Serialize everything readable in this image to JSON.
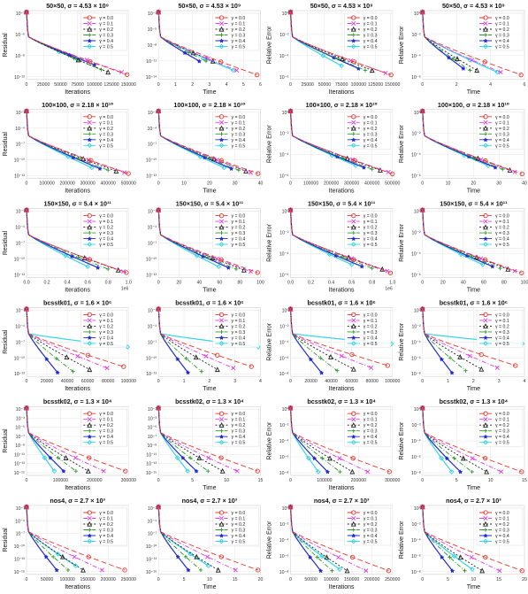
{
  "legend_labels": [
    "γ = 0.0",
    "γ = 0.1",
    "γ = 0.2",
    "γ = 0.3",
    "γ = 0.4",
    "γ = 0.5"
  ],
  "series_colors": [
    "#e8392f",
    "#e03ce6",
    "#222222",
    "#2a9a2a",
    "#1f2ad6",
    "#33d3e8"
  ],
  "chart_data": [
    {
      "row": 0,
      "col": 0,
      "type": "line",
      "title": "50×50, σ = 4.53 × 10⁹",
      "xlabel": "Iterations",
      "ylabel": "Residual",
      "xticks": [
        "0",
        "25000",
        "50000",
        "75000",
        "100000",
        "125000",
        "150000"
      ],
      "xlim": [
        0,
        150000
      ],
      "yticks": [
        "10⁻³",
        "10⁻⁶",
        "10⁻⁹",
        "10⁻¹²"
      ],
      "ylim": [
        -14,
        0
      ],
      "series_end_x": [
        148000,
        140000,
        120000,
        110000,
        100000,
        75000
      ],
      "series_end_y": [
        -13,
        -12.5,
        -12.5,
        -12,
        -11,
        -10
      ]
    },
    {
      "row": 0,
      "col": 1,
      "type": "line",
      "title": "50×50, σ = 4.53 × 10⁹",
      "xlabel": "Time",
      "ylabel": "",
      "xticks": [
        "0",
        "1",
        "2",
        "3",
        "4",
        "5",
        "6"
      ],
      "xlim": [
        0,
        6
      ],
      "yticks": [
        "10⁻²",
        "10⁻⁵",
        "10⁻⁸",
        "10⁻¹¹",
        "10⁻¹⁴"
      ],
      "ylim": [
        -15,
        0
      ],
      "series_end_x": [
        5.8,
        4.6,
        3.2,
        2.8,
        2.4,
        4.4
      ],
      "series_end_y": [
        -14,
        -13,
        -11,
        -11,
        -11,
        -13
      ]
    },
    {
      "row": 0,
      "col": 2,
      "type": "line",
      "title": "50×50, σ = 4.53 × 10⁹",
      "xlabel": "Iterations",
      "ylabel": "Relative Error",
      "xticks": [
        "0",
        "25000",
        "50000",
        "75000",
        "100000",
        "125000",
        "150000"
      ],
      "xlim": [
        0,
        150000
      ],
      "yticks": [
        "10⁰",
        "10⁻²",
        "10⁻⁴",
        "10⁻⁶"
      ],
      "ylim": [
        -7,
        0.5
      ],
      "series_end_x": [
        148000,
        140000,
        120000,
        110000,
        100000,
        75000
      ],
      "series_end_y": [
        -6.5,
        -6.3,
        -6,
        -6,
        -5.8,
        -5.5
      ]
    },
    {
      "row": 0,
      "col": 3,
      "type": "line",
      "title": "50×50, σ = 4.53 × 10⁹",
      "xlabel": "Time",
      "ylabel": "Relative Error",
      "xticks": [
        "0",
        "2",
        "4",
        "6"
      ],
      "xlim": [
        0,
        6
      ],
      "yticks": [
        "10⁰",
        "10⁻²",
        "10⁻⁴",
        "10⁻⁶"
      ],
      "ylim": [
        -7,
        0.5
      ],
      "series_end_x": [
        5.8,
        4.6,
        3.2,
        2.8,
        2.4,
        4.4
      ],
      "series_end_y": [
        -6.5,
        -6.2,
        -6,
        -6,
        -5.8,
        -6.2
      ]
    },
    {
      "row": 1,
      "col": 0,
      "type": "line",
      "title": "100×100, σ = 2.18 × 10¹⁰",
      "xlabel": "Iterations",
      "ylabel": "Residual",
      "xticks": [
        "0",
        "100000",
        "200000",
        "300000",
        "400000",
        "500000"
      ],
      "xlim": [
        0,
        500000
      ],
      "yticks": [
        "10⁻¹",
        "10⁻⁴",
        "10⁻⁷",
        "10⁻¹⁰",
        "10⁻¹³"
      ],
      "ylim": [
        -14,
        0
      ],
      "series_end_x": [
        500000,
        480000,
        440000,
        400000,
        360000,
        320000
      ],
      "series_end_y": [
        -13,
        -12.8,
        -12.5,
        -12.3,
        -12,
        -11.8
      ]
    },
    {
      "row": 1,
      "col": 1,
      "type": "line",
      "title": "100×100, σ = 2.18 × 10¹⁰",
      "xlabel": "Time",
      "ylabel": "",
      "xticks": [
        "0",
        "10",
        "20",
        "30",
        "40"
      ],
      "xlim": [
        0,
        42
      ],
      "yticks": [
        "10⁻¹",
        "10⁻⁴",
        "10⁻⁷",
        "10⁻¹⁰",
        "10⁻¹³"
      ],
      "ylim": [
        -14,
        0
      ],
      "series_end_x": [
        41,
        38,
        36,
        33,
        30,
        27
      ],
      "series_end_y": [
        -13,
        -12.8,
        -12.5,
        -12.3,
        -12,
        -11.8
      ]
    },
    {
      "row": 1,
      "col": 2,
      "type": "line",
      "title": "100×100, σ = 2.18 × 10¹⁰",
      "xlabel": "Iterations",
      "ylabel": "Relative Error",
      "xticks": [
        "0",
        "100000",
        "200000",
        "300000",
        "400000",
        "500000"
      ],
      "xlim": [
        0,
        500000
      ],
      "yticks": [
        "10⁰",
        "10⁻²",
        "10⁻⁴",
        "10⁻⁶"
      ],
      "ylim": [
        -7,
        0.5
      ],
      "series_end_x": [
        500000,
        480000,
        440000,
        400000,
        360000,
        320000
      ],
      "series_end_y": [
        -6.5,
        -6.3,
        -6.1,
        -6,
        -5.8,
        -5.6
      ]
    },
    {
      "row": 1,
      "col": 3,
      "type": "line",
      "title": "100×100, σ = 2.18 × 10¹⁰",
      "xlabel": "Time",
      "ylabel": "Relative Error",
      "xticks": [
        "0",
        "10",
        "20",
        "30",
        "40"
      ],
      "xlim": [
        0,
        42
      ],
      "yticks": [
        "10⁰",
        "10⁻²",
        "10⁻⁴",
        "10⁻⁶"
      ],
      "ylim": [
        -7,
        0.5
      ],
      "series_end_x": [
        41,
        38,
        36,
        33,
        30,
        27
      ],
      "series_end_y": [
        -6.5,
        -6.3,
        -6.1,
        -6,
        -5.8,
        -5.6
      ]
    },
    {
      "row": 2,
      "col": 0,
      "type": "line",
      "title": "150×150, σ = 5.4 × 10¹¹",
      "xlabel": "Iterations",
      "ylabel": "Residual",
      "offset_label": "1e6",
      "xticks": [
        "0.0",
        "0.2",
        "0.4",
        "0.6",
        "0.8",
        "1.0"
      ],
      "xlim": [
        0,
        1.0
      ],
      "yticks": [
        "10⁻¹",
        "10⁻⁴",
        "10⁻⁷",
        "10⁻¹⁰",
        "10⁻¹³"
      ],
      "ylim": [
        -14,
        0
      ],
      "series_end_x": [
        0.98,
        0.95,
        0.9,
        0.8,
        0.7,
        0.6
      ],
      "series_end_y": [
        -13,
        -12.8,
        -12.5,
        -12.3,
        -12,
        -11.8
      ]
    },
    {
      "row": 2,
      "col": 1,
      "type": "line",
      "title": "150×150, σ = 5.4 × 10¹¹",
      "xlabel": "Time",
      "ylabel": "",
      "xticks": [
        "0",
        "20",
        "40",
        "60",
        "80",
        "100"
      ],
      "xlim": [
        0,
        105
      ],
      "yticks": [
        "10⁻¹",
        "10⁻⁴",
        "10⁻⁷",
        "10⁻¹⁰",
        "10⁻¹³"
      ],
      "ylim": [
        -14,
        0
      ],
      "series_end_x": [
        102,
        95,
        88,
        80,
        72,
        62
      ],
      "series_end_y": [
        -13,
        -12.8,
        -12.5,
        -12.3,
        -12,
        -11.8
      ]
    },
    {
      "row": 2,
      "col": 2,
      "type": "line",
      "title": "150×150, σ = 5.4 × 10¹¹",
      "xlabel": "Iterations",
      "ylabel": "Relative Error",
      "offset_label": "1e6",
      "xticks": [
        "0.0",
        "0.2",
        "0.4",
        "0.6",
        "0.8",
        "1.0"
      ],
      "xlim": [
        0,
        1.0
      ],
      "yticks": [
        "10⁰",
        "10⁻²",
        "10⁻⁴",
        "10⁻⁶"
      ],
      "ylim": [
        -7,
        0.5
      ],
      "series_end_x": [
        0.98,
        0.95,
        0.9,
        0.8,
        0.7,
        0.6
      ],
      "series_end_y": [
        -6.5,
        -6.3,
        -6.1,
        -6,
        -5.8,
        -5.6
      ]
    },
    {
      "row": 2,
      "col": 3,
      "type": "line",
      "title": "150×150, σ = 5.4 × 10¹¹",
      "xlabel": "Time",
      "ylabel": "Relative Error",
      "xticks": [
        "0",
        "20",
        "40",
        "60",
        "80",
        "100"
      ],
      "xlim": [
        0,
        105
      ],
      "yticks": [
        "10⁰",
        "10⁻²",
        "10⁻⁴",
        "10⁻⁶"
      ],
      "ylim": [
        -7,
        0.5
      ],
      "series_end_x": [
        102,
        95,
        88,
        80,
        72,
        62
      ],
      "series_end_y": [
        -6.5,
        -6.3,
        -6.1,
        -6,
        -5.8,
        -5.6
      ]
    },
    {
      "row": 3,
      "col": 0,
      "type": "line",
      "title": "bcsstk01, σ = 1.6 × 10⁶",
      "xlabel": "Iterations",
      "ylabel": "Residual",
      "xticks": [
        "0",
        "20000",
        "40000",
        "60000",
        "80000",
        "100000"
      ],
      "xlim": [
        0,
        105000
      ],
      "yticks": [
        "10⁻¹",
        "10⁻⁴",
        "10⁻⁷",
        "10⁻¹⁰",
        "10⁻¹³"
      ],
      "ylim": [
        -14,
        0
      ],
      "series_end_x": [
        100000,
        83000,
        65000,
        48000,
        32000,
        104000
      ],
      "series_end_y": [
        -12,
        -12.3,
        -12.6,
        -13,
        -13.2,
        -8
      ]
    },
    {
      "row": 3,
      "col": 1,
      "type": "line",
      "title": "bcsstk01, σ = 1.6 × 10⁶",
      "xlabel": "Time",
      "ylabel": "",
      "xticks": [
        "0",
        "1",
        "2",
        "3",
        "4"
      ],
      "xlim": [
        0,
        4.5
      ],
      "yticks": [
        "10⁻¹",
        "10⁻⁴",
        "10⁻⁷",
        "10⁻¹⁰",
        "10⁻¹³"
      ],
      "ylim": [
        -14,
        0
      ],
      "series_end_x": [
        4.1,
        3.3,
        2.6,
        1.9,
        1.3,
        4.4
      ],
      "series_end_y": [
        -12,
        -12.3,
        -12.6,
        -13,
        -13.2,
        -8
      ]
    },
    {
      "row": 3,
      "col": 2,
      "type": "line",
      "title": "bcsstk01, σ = 1.6 × 10⁶",
      "xlabel": "Iterations",
      "ylabel": "Relative Error",
      "xticks": [
        "0",
        "20000",
        "40000",
        "60000",
        "80000",
        "100000"
      ],
      "xlim": [
        0,
        105000
      ],
      "yticks": [
        "10⁰",
        "10⁻²",
        "10⁻⁴",
        "10⁻⁶",
        "10⁻⁸"
      ],
      "ylim": [
        -9,
        0.5
      ],
      "series_end_x": [
        100000,
        83000,
        65000,
        48000,
        32000,
        104000
      ],
      "series_end_y": [
        -7.5,
        -7.8,
        -8,
        -8.2,
        -8.5,
        -4.5
      ]
    },
    {
      "row": 3,
      "col": 3,
      "type": "line",
      "title": "bcsstk01, σ = 1.6 × 10⁶",
      "xlabel": "Time",
      "ylabel": "Relative Error",
      "xticks": [
        "0",
        "1",
        "2",
        "3",
        "4"
      ],
      "xlim": [
        0,
        4.5
      ],
      "yticks": [
        "10⁰",
        "10⁻²",
        "10⁻⁴",
        "10⁻⁶",
        "10⁻⁸"
      ],
      "ylim": [
        -9,
        0.5
      ],
      "series_end_x": [
        4.1,
        3.3,
        2.6,
        1.9,
        1.3,
        4.4
      ],
      "series_end_y": [
        -7.5,
        -7.8,
        -8,
        -8.2,
        -8.5,
        -4.5
      ]
    },
    {
      "row": 4,
      "col": 0,
      "type": "line",
      "title": "bcsstk02, σ = 1.3 × 10⁴",
      "xlabel": "Iterations",
      "ylabel": "Residual",
      "xticks": [
        "0",
        "100000",
        "200000",
        "300000"
      ],
      "xlim": [
        0,
        330000
      ],
      "yticks": [
        "10⁻¹",
        "10⁻³",
        "10⁻⁵",
        "10⁻⁷",
        "10⁻⁹",
        "10⁻¹¹",
        "10⁻¹³",
        "10⁻¹⁵"
      ],
      "ylim": [
        -16,
        0
      ],
      "series_end_x": [
        320000,
        250000,
        200000,
        160000,
        120000,
        90000
      ],
      "series_end_y": [
        -15,
        -15,
        -15,
        -15,
        -15,
        -15
      ]
    },
    {
      "row": 4,
      "col": 1,
      "type": "line",
      "title": "bcsstk02, σ = 1.3 × 10⁴",
      "xlabel": "Time",
      "ylabel": "",
      "xticks": [
        "0",
        "5",
        "10",
        "15"
      ],
      "xlim": [
        0,
        17.5
      ],
      "yticks": [
        "10⁻¹",
        "10⁻³",
        "10⁻⁵",
        "10⁻⁷",
        "10⁻⁹",
        "10⁻¹¹",
        "10⁻¹³",
        "10⁻¹⁵"
      ],
      "ylim": [
        -16,
        0
      ],
      "series_end_x": [
        17,
        13.5,
        11,
        8.5,
        6.5,
        5
      ],
      "series_end_y": [
        -15,
        -15,
        -15,
        -15,
        -15,
        -15
      ]
    },
    {
      "row": 4,
      "col": 2,
      "type": "line",
      "title": "bcsstk02, σ = 1.3 × 10⁴",
      "xlabel": "Iterations",
      "ylabel": "Relative Error",
      "xticks": [
        "0",
        "100000",
        "200000",
        "300000"
      ],
      "xlim": [
        0,
        330000
      ],
      "yticks": [
        "10⁰",
        "10⁻²",
        "10⁻⁴",
        "10⁻⁶",
        "10⁻⁸"
      ],
      "ylim": [
        -9,
        0.5
      ],
      "series_end_x": [
        320000,
        250000,
        200000,
        160000,
        120000,
        90000
      ],
      "series_end_y": [
        -8.5,
        -8.5,
        -8.5,
        -8.5,
        -8.5,
        -8.5
      ]
    },
    {
      "row": 4,
      "col": 3,
      "type": "line",
      "title": "bcsstk02, σ = 1.3 × 10⁴",
      "xlabel": "Time",
      "ylabel": "Relative Error",
      "xticks": [
        "0",
        "5",
        "10",
        "15"
      ],
      "xlim": [
        0,
        17.5
      ],
      "yticks": [
        "10⁰",
        "10⁻²",
        "10⁻⁴",
        "10⁻⁶",
        "10⁻⁸"
      ],
      "ylim": [
        -9,
        0.5
      ],
      "series_end_x": [
        17,
        13.5,
        11,
        8.5,
        6.5,
        5
      ],
      "series_end_y": [
        -8.5,
        -8.5,
        -8.5,
        -8.5,
        -8.5,
        -8.5
      ]
    },
    {
      "row": 5,
      "col": 0,
      "type": "line",
      "title": "nos4, σ = 2.7 × 10³",
      "xlabel": "Iterations",
      "ylabel": "Residual",
      "xticks": [
        "0",
        "50000",
        "100000",
        "150000",
        "200000",
        "250000"
      ],
      "xlim": [
        0,
        270000
      ],
      "yticks": [
        "10⁻¹",
        "10⁻⁴",
        "10⁻⁷",
        "10⁻¹⁰",
        "10⁻¹³",
        "10⁻¹⁶"
      ],
      "ylim": [
        -16,
        0
      ],
      "series_end_x": [
        260000,
        200000,
        150000,
        110000,
        80000,
        130000
      ],
      "series_end_y": [
        -15,
        -15,
        -15,
        -15,
        -15,
        -14
      ]
    },
    {
      "row": 5,
      "col": 1,
      "type": "line",
      "title": "nos4, σ = 2.7 × 10³",
      "xlabel": "Time",
      "ylabel": "",
      "xticks": [
        "0",
        "5",
        "10",
        "15",
        "20"
      ],
      "xlim": [
        0,
        20.5
      ],
      "yticks": [
        "10⁻¹",
        "10⁻⁴",
        "10⁻⁷",
        "10⁻¹⁰",
        "10⁻¹³",
        "10⁻¹⁶"
      ],
      "ylim": [
        -16,
        0
      ],
      "series_end_x": [
        20,
        15.5,
        12,
        8.5,
        6,
        10
      ],
      "series_end_y": [
        -15,
        -15,
        -15,
        -15,
        -15,
        -14
      ]
    },
    {
      "row": 5,
      "col": 2,
      "type": "line",
      "title": "nos4, σ = 2.7 × 10³",
      "xlabel": "Iterations",
      "ylabel": "Relative Error",
      "xticks": [
        "0",
        "50000",
        "100000",
        "150000",
        "200000",
        "250000"
      ],
      "xlim": [
        0,
        270000
      ],
      "yticks": [
        "10⁰",
        "10⁻²",
        "10⁻⁴",
        "10⁻⁶",
        "10⁻⁸"
      ],
      "ylim": [
        -9,
        0.5
      ],
      "series_end_x": [
        260000,
        200000,
        150000,
        110000,
        80000,
        130000
      ],
      "series_end_y": [
        -8.5,
        -8.5,
        -8.5,
        -8.5,
        -8.5,
        -8.3
      ]
    },
    {
      "row": 5,
      "col": 3,
      "type": "line",
      "title": "nos4, σ = 2.7 × 10³",
      "xlabel": "Time",
      "ylabel": "Relative Error",
      "xticks": [
        "0",
        "5",
        "10",
        "15",
        "20"
      ],
      "xlim": [
        0,
        20.5
      ],
      "yticks": [
        "10⁰",
        "10⁻²",
        "10⁻⁴",
        "10⁻⁶",
        "10⁻⁸"
      ],
      "ylim": [
        -9,
        0.5
      ],
      "series_end_x": [
        20,
        15.5,
        12,
        8.5,
        6,
        10
      ],
      "series_end_y": [
        -8.5,
        -8.5,
        -8.5,
        -8.5,
        -8.5,
        -8.3
      ]
    }
  ]
}
